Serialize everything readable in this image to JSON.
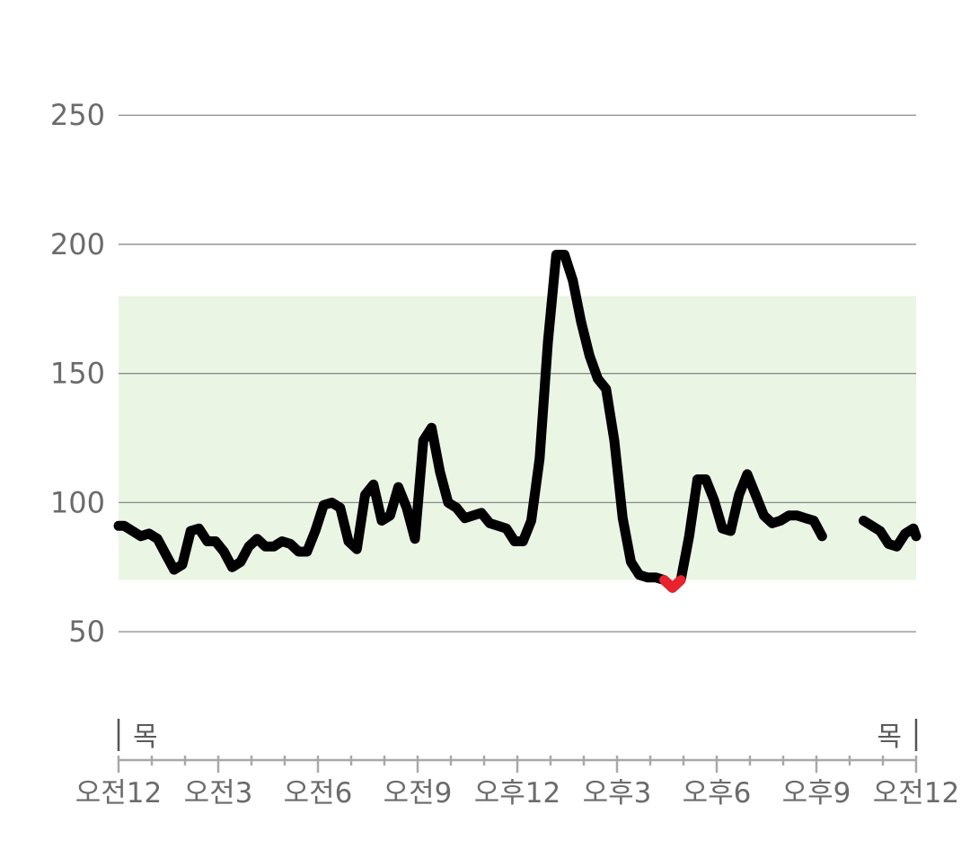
{
  "colors": {
    "background": "#ffffff",
    "target_band": "#eaf5e4",
    "gridline": "#8a8a8a",
    "line": "#000000",
    "low": "#e8222f",
    "axis": "#a8a8a8",
    "text": "#6b6b6b"
  },
  "chart_data": {
    "type": "line",
    "title": "",
    "xlabel": "",
    "ylabel": "",
    "x_unit": "hours since 오전12",
    "xlim": [
      0,
      24
    ],
    "ylim": [
      25,
      280
    ],
    "grid": true,
    "y_ticks": [
      50,
      100,
      150,
      200,
      250
    ],
    "x_ticks": [
      {
        "x": 0,
        "label": "오전12"
      },
      {
        "x": 3,
        "label": "오전3"
      },
      {
        "x": 6,
        "label": "오전6"
      },
      {
        "x": 9,
        "label": "오전9"
      },
      {
        "x": 12,
        "label": "오후12"
      },
      {
        "x": 15,
        "label": "오후3"
      },
      {
        "x": 18,
        "label": "오후6"
      },
      {
        "x": 21,
        "label": "오후9"
      },
      {
        "x": 24,
        "label": "오전12"
      }
    ],
    "day_labels": [
      {
        "x": 0,
        "label": "목",
        "align": "start"
      },
      {
        "x": 24,
        "label": "목",
        "align": "end"
      }
    ],
    "target_range": [
      70,
      180
    ],
    "low_threshold": 70,
    "segments": [
      {
        "points": [
          [
            0.0,
            91
          ],
          [
            0.17,
            91
          ],
          [
            0.42,
            89
          ],
          [
            0.67,
            87
          ],
          [
            0.92,
            88
          ],
          [
            1.17,
            86
          ],
          [
            1.42,
            80
          ],
          [
            1.67,
            74
          ],
          [
            1.92,
            76
          ],
          [
            2.17,
            89
          ],
          [
            2.42,
            90
          ],
          [
            2.67,
            85
          ],
          [
            2.92,
            85
          ],
          [
            3.17,
            81
          ],
          [
            3.42,
            75
          ],
          [
            3.67,
            77
          ],
          [
            3.92,
            83
          ],
          [
            4.17,
            86
          ],
          [
            4.42,
            83
          ],
          [
            4.67,
            83
          ],
          [
            4.92,
            85
          ],
          [
            5.17,
            84
          ],
          [
            5.42,
            81
          ],
          [
            5.67,
            81
          ],
          [
            5.92,
            89
          ],
          [
            6.17,
            99
          ],
          [
            6.42,
            100
          ],
          [
            6.67,
            98
          ],
          [
            6.92,
            85
          ],
          [
            7.17,
            82
          ],
          [
            7.42,
            103
          ],
          [
            7.67,
            107
          ],
          [
            7.92,
            93
          ],
          [
            8.17,
            95
          ],
          [
            8.42,
            106
          ],
          [
            8.67,
            98
          ],
          [
            8.92,
            86
          ],
          [
            9.17,
            124
          ],
          [
            9.42,
            129
          ],
          [
            9.67,
            112
          ],
          [
            9.92,
            100
          ],
          [
            10.17,
            98
          ],
          [
            10.42,
            94
          ],
          [
            10.67,
            95
          ],
          [
            10.92,
            96
          ],
          [
            11.17,
            92
          ],
          [
            11.42,
            91
          ],
          [
            11.67,
            90
          ],
          [
            11.92,
            85
          ],
          [
            12.17,
            85
          ],
          [
            12.42,
            93
          ],
          [
            12.67,
            117
          ],
          [
            12.92,
            162
          ],
          [
            13.17,
            196
          ],
          [
            13.42,
            196
          ],
          [
            13.67,
            186
          ],
          [
            13.92,
            170
          ],
          [
            14.17,
            157
          ],
          [
            14.42,
            148
          ],
          [
            14.67,
            144
          ],
          [
            14.92,
            124
          ],
          [
            15.17,
            94
          ],
          [
            15.42,
            77
          ],
          [
            15.67,
            72
          ],
          [
            15.92,
            71
          ],
          [
            16.17,
            71
          ],
          [
            16.42,
            70
          ],
          [
            16.67,
            67
          ],
          [
            16.92,
            70
          ],
          [
            17.17,
            87
          ],
          [
            17.42,
            109
          ],
          [
            17.67,
            109
          ],
          [
            17.92,
            101
          ],
          [
            18.17,
            90
          ],
          [
            18.42,
            89
          ],
          [
            18.67,
            103
          ],
          [
            18.92,
            111
          ],
          [
            19.17,
            103
          ],
          [
            19.42,
            95
          ],
          [
            19.67,
            92
          ],
          [
            19.92,
            93
          ],
          [
            20.17,
            95
          ],
          [
            20.42,
            95
          ],
          [
            20.67,
            94
          ],
          [
            20.92,
            93
          ],
          [
            21.17,
            87
          ]
        ]
      },
      {
        "points": [
          [
            22.42,
            93
          ],
          [
            22.67,
            91
          ],
          [
            22.92,
            89
          ],
          [
            23.17,
            84
          ],
          [
            23.42,
            83
          ],
          [
            23.67,
            88
          ],
          [
            23.92,
            90
          ],
          [
            24.0,
            87
          ]
        ]
      }
    ]
  }
}
